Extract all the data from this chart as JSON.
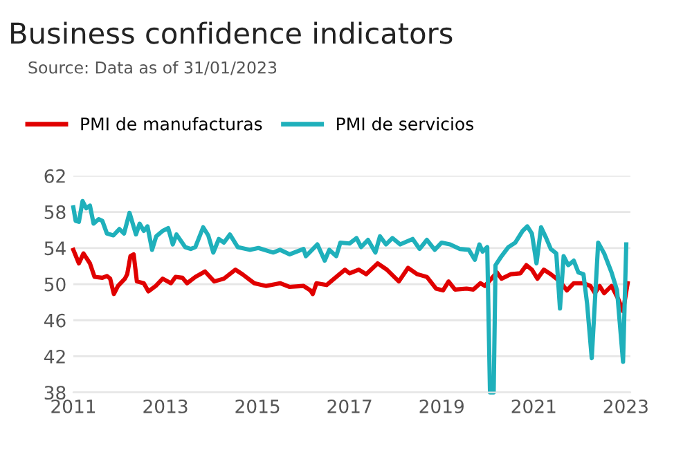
{
  "chart_data": {
    "type": "line",
    "title": "Business confidence indicators",
    "subtitle": "Source: Data as of 31/01/2023",
    "series": [
      {
        "name": "PMI de manufacturas",
        "color": "#e00000",
        "x": [
          2011.0,
          2011.12,
          2011.22,
          2011.36,
          2011.46,
          2011.63,
          2011.73,
          2011.8,
          2011.88,
          2011.97,
          2012.12,
          2012.17,
          2012.24,
          2012.31,
          2012.38,
          2012.53,
          2012.63,
          2012.79,
          2012.94,
          2013.12,
          2013.22,
          2013.37,
          2013.47,
          2013.65,
          2013.86,
          2014.06,
          2014.27,
          2014.52,
          2014.67,
          2014.93,
          2015.18,
          2015.49,
          2015.69,
          2016.0,
          2016.15,
          2016.2,
          2016.28,
          2016.5,
          2016.71,
          2016.9,
          2017.0,
          2017.2,
          2017.36,
          2017.61,
          2017.81,
          2018.07,
          2018.27,
          2018.47,
          2018.68,
          2018.88,
          2019.03,
          2019.15,
          2019.29,
          2019.54,
          2019.69,
          2019.84,
          2019.94,
          2020.2,
          2020.3,
          2020.5,
          2020.71,
          2020.84,
          2020.96,
          2021.08,
          2021.22,
          2021.37,
          2021.57,
          2021.72,
          2021.87,
          2022.08,
          2022.23,
          2022.33,
          2022.43,
          2022.53,
          2022.69,
          2022.84,
          2022.94,
          2023.04
        ],
        "values": [
          53.8,
          52.3,
          53.4,
          52.3,
          50.8,
          50.7,
          50.9,
          50.6,
          48.9,
          49.8,
          50.6,
          51.1,
          53.1,
          53.3,
          50.3,
          50.1,
          49.2,
          49.8,
          50.6,
          50.1,
          50.8,
          50.7,
          50.1,
          50.8,
          51.4,
          50.3,
          50.6,
          51.6,
          51.1,
          50.1,
          49.8,
          50.1,
          49.7,
          49.8,
          49.3,
          48.9,
          50.1,
          49.9,
          50.8,
          51.6,
          51.2,
          51.6,
          51.1,
          52.3,
          51.6,
          50.3,
          51.8,
          51.1,
          50.8,
          49.5,
          49.3,
          50.3,
          49.4,
          49.5,
          49.4,
          50.1,
          49.8,
          51.3,
          50.6,
          51.1,
          51.2,
          52.1,
          51.6,
          50.6,
          51.6,
          51.1,
          50.3,
          49.3,
          50.1,
          50.1,
          49.8,
          49.0,
          49.8,
          49.0,
          49.8,
          48.3,
          47.0,
          50.1
        ]
      },
      {
        "name": "PMI de servicios",
        "color": "#1fb0bb",
        "x": [
          2011.0,
          2011.05,
          2011.12,
          2011.2,
          2011.28,
          2011.36,
          2011.44,
          2011.55,
          2011.63,
          2011.73,
          2011.87,
          2012.0,
          2012.1,
          2012.22,
          2012.36,
          2012.44,
          2012.53,
          2012.61,
          2012.71,
          2012.8,
          2012.94,
          2013.06,
          2013.16,
          2013.24,
          2013.43,
          2013.55,
          2013.65,
          2013.82,
          2013.93,
          2014.04,
          2014.16,
          2014.27,
          2014.4,
          2014.57,
          2014.83,
          2015.02,
          2015.34,
          2015.49,
          2015.7,
          2016.0,
          2016.05,
          2016.3,
          2016.46,
          2016.56,
          2016.71,
          2016.8,
          2017.0,
          2017.15,
          2017.25,
          2017.4,
          2017.56,
          2017.66,
          2017.79,
          2017.93,
          2018.1,
          2018.37,
          2018.52,
          2018.68,
          2018.85,
          2019.0,
          2019.18,
          2019.39,
          2019.59,
          2019.72,
          2019.82,
          2019.89,
          2019.99,
          2020.05,
          2020.13,
          2020.17,
          2020.3,
          2020.45,
          2020.6,
          2020.76,
          2020.86,
          2020.96,
          2021.06,
          2021.16,
          2021.27,
          2021.37,
          2021.49,
          2021.57,
          2021.65,
          2021.75,
          2021.87,
          2021.97,
          2022.08,
          2022.16,
          2022.26,
          2022.4,
          2022.53,
          2022.69,
          2022.81,
          2022.94,
          2023.01
        ],
        "values": [
          58.5,
          57.0,
          56.9,
          59.2,
          58.4,
          58.7,
          56.7,
          57.2,
          57.0,
          55.6,
          55.4,
          56.1,
          55.6,
          57.9,
          55.5,
          56.7,
          55.9,
          56.4,
          53.8,
          55.3,
          55.9,
          56.2,
          54.4,
          55.5,
          54.1,
          53.9,
          54.1,
          56.3,
          55.4,
          53.5,
          55.0,
          54.6,
          55.5,
          54.1,
          53.8,
          54.0,
          53.5,
          53.8,
          53.3,
          53.9,
          53.1,
          54.4,
          52.6,
          53.8,
          53.1,
          54.6,
          54.5,
          55.1,
          54.1,
          54.9,
          53.5,
          55.3,
          54.4,
          55.1,
          54.4,
          55.0,
          53.9,
          54.9,
          53.8,
          54.6,
          54.4,
          53.9,
          53.8,
          52.7,
          54.4,
          53.6,
          54.1,
          38.0,
          38.0,
          52.1,
          53.1,
          54.1,
          54.6,
          55.9,
          56.4,
          55.6,
          52.3,
          56.3,
          55.1,
          53.9,
          53.4,
          47.3,
          53.1,
          52.1,
          52.6,
          51.3,
          51.1,
          47.8,
          41.8,
          54.6,
          53.4,
          51.3,
          49.3,
          41.4,
          54.4
        ]
      }
    ],
    "xlim": [
      2011,
      2023.1
    ],
    "xticks": [
      2011,
      2013,
      2015,
      2017,
      2019,
      2021,
      2023
    ],
    "ylim": [
      38,
      62
    ],
    "yticks": [
      38,
      42,
      46,
      50,
      54,
      58,
      62
    ],
    "grid": "y",
    "legend": "top left"
  }
}
